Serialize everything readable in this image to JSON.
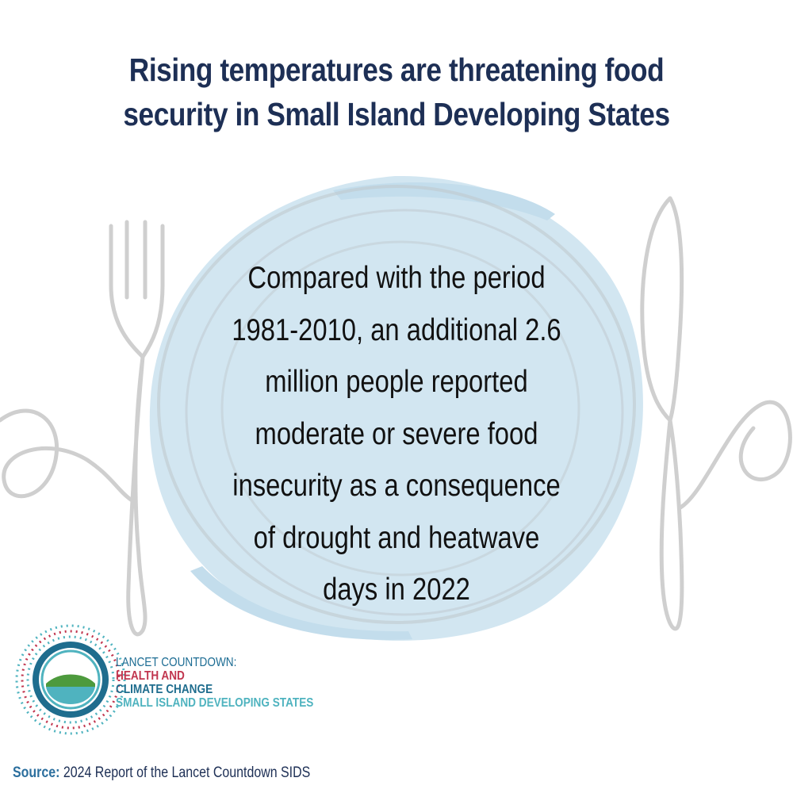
{
  "headline": {
    "lines": [
      "Rising temperatures are threatening food",
      "security in Small Island Developing States"
    ]
  },
  "statement": {
    "lines": [
      "Compared with the period",
      "1981-2010, an additional 2.6",
      "million people reported",
      "moderate or severe food",
      "insecurity as a consequence",
      "of drought and heatwave",
      "days in 2022"
    ]
  },
  "logo": {
    "line1": "LANCET COUNTDOWN:",
    "line2": "HEALTH AND",
    "line3": "CLIMATE CHANGE",
    "line4": "SMALL ISLAND DEVELOPING STATES"
  },
  "source": {
    "label": "Source:",
    "text": " 2024 Report of the Lancet Countdown SIDS"
  },
  "colors": {
    "title": "#1d2f55",
    "plate": "#d2e6f1",
    "cutlery": "#cfcfcf",
    "logo_red": "#c1364f",
    "logo_blue": "#1f6d8e",
    "logo_teal": "#4fb3bf"
  }
}
